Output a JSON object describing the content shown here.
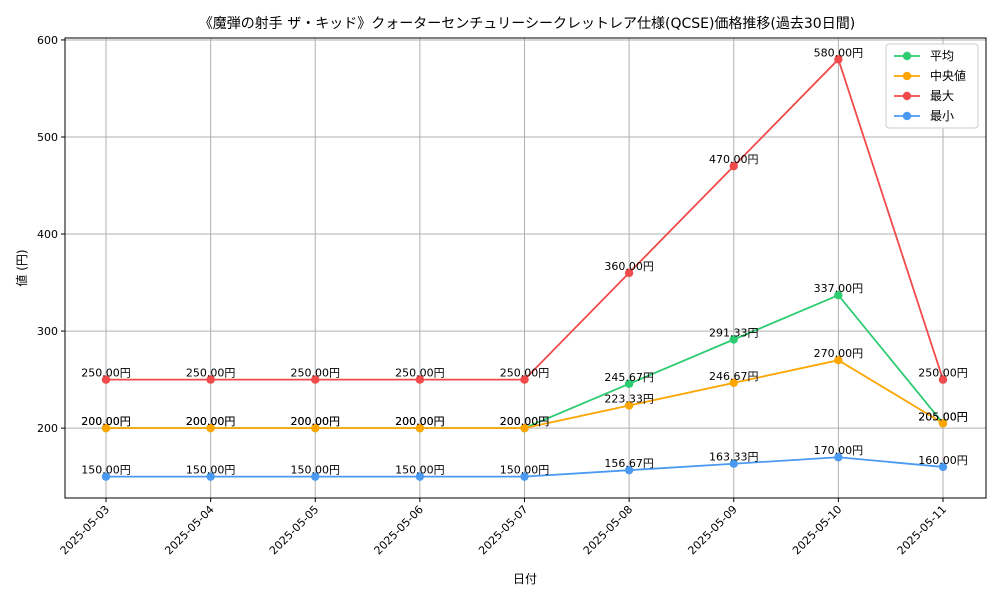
{
  "chart_data": {
    "type": "line",
    "title": "《魔弾の射手 ザ・キッド》クォーターセンチュリーシークレットレア仕様(QCSE)価格推移(過去30日間)",
    "xlabel": "日付",
    "ylabel": "値 (円)",
    "ylim": [
      128,
      602
    ],
    "yticks": [
      200,
      300,
      400,
      500,
      600
    ],
    "grid": true,
    "legend_position": "top-right",
    "label_suffix": "円",
    "categories": [
      "2025-05-03",
      "2025-05-04",
      "2025-05-05",
      "2025-05-06",
      "2025-05-07",
      "2025-05-08",
      "2025-05-09",
      "2025-05-10",
      "2025-05-11"
    ],
    "series": [
      {
        "name": "平均",
        "color": "#2ecc71",
        "values": [
          200.0,
          200.0,
          200.0,
          200.0,
          200.0,
          245.67,
          291.33,
          337.0,
          205.0
        ]
      },
      {
        "name": "中央値",
        "color": "#ffa500",
        "values": [
          200.0,
          200.0,
          200.0,
          200.0,
          200.0,
          223.33,
          246.67,
          270.0,
          205.0
        ]
      },
      {
        "name": "最大",
        "color": "#f14a4a",
        "values": [
          250.0,
          250.0,
          250.0,
          250.0,
          250.0,
          360.0,
          470.0,
          580.0,
          250.0
        ]
      },
      {
        "name": "最小",
        "color": "#4a9af1",
        "values": [
          150.0,
          150.0,
          150.0,
          150.0,
          150.0,
          156.67,
          163.33,
          170.0,
          160.0
        ]
      }
    ]
  }
}
